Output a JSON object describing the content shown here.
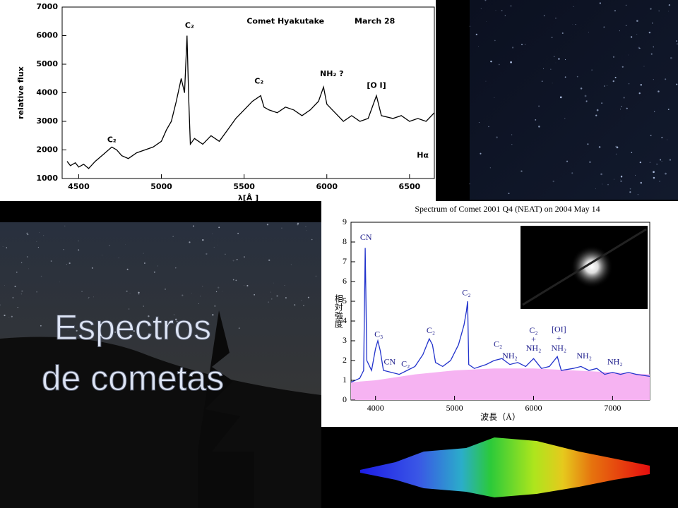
{
  "slide_title": [
    "Espectros",
    "de cometas"
  ],
  "chart_data": [
    {
      "type": "line",
      "xlabel": "λ[Å ]",
      "ylabel": "relative flux",
      "xlim": [
        4400,
        6650
      ],
      "ylim": [
        1000,
        7000
      ],
      "xticks": [
        4500,
        5000,
        5500,
        6000,
        6500
      ],
      "yticks": [
        1000,
        2000,
        3000,
        4000,
        5000,
        6000,
        7000
      ],
      "series": [
        {
          "color": "#000000",
          "x": [
            4430,
            4450,
            4480,
            4500,
            4530,
            4560,
            4600,
            4650,
            4700,
            4730,
            4760,
            4800,
            4850,
            4900,
            4950,
            5000,
            5030,
            5060,
            5090,
            5120,
            5140,
            5155,
            5165,
            5175,
            5200,
            5250,
            5300,
            5350,
            5400,
            5450,
            5500,
            5550,
            5600,
            5620,
            5650,
            5700,
            5750,
            5800,
            5850,
            5900,
            5950,
            5980,
            6000,
            6050,
            6100,
            6150,
            6200,
            6250,
            6300,
            6330,
            6400,
            6450,
            6500,
            6550,
            6600,
            6650
          ],
          "values": [
            1600,
            1450,
            1550,
            1400,
            1500,
            1350,
            1600,
            1850,
            2100,
            2000,
            1800,
            1700,
            1900,
            2000,
            2100,
            2300,
            2700,
            3000,
            3700,
            4500,
            4000,
            6000,
            3800,
            2200,
            2400,
            2200,
            2500,
            2300,
            2700,
            3100,
            3400,
            3700,
            3900,
            3500,
            3400,
            3300,
            3500,
            3400,
            3200,
            3400,
            3700,
            4200,
            3600,
            3300,
            3000,
            3200,
            3000,
            3100,
            3900,
            3200,
            3100,
            3200,
            3000,
            3100,
            3000,
            3300
          ]
        }
      ],
      "annotations": [
        {
          "text": "C₂",
          "x": 4700,
          "y": 2350
        },
        {
          "text": "C₂",
          "x": 5170,
          "y": 6350
        },
        {
          "text": "C₂",
          "x": 5590,
          "y": 4400
        },
        {
          "text": "NH₂ ?",
          "x": 6030,
          "y": 4650
        },
        {
          "text": "[O I]",
          "x": 6300,
          "y": 4250
        },
        {
          "text": "Hα",
          "x": 6580,
          "y": 1800
        },
        {
          "text": "Comet Hyakutake",
          "x": 5750,
          "y": 6500
        },
        {
          "text": "March 28",
          "x": 6290,
          "y": 6500
        }
      ]
    },
    {
      "type": "line",
      "title": "Spectrum of Comet 2001 Q4 (NEAT) on 2004 May 14",
      "xlabel": "波長（Å）",
      "ylabel": "相対強度",
      "xlim": [
        3690,
        7470
      ],
      "ylim": [
        0,
        9
      ],
      "xticks": [
        4000,
        5000,
        6000,
        7000
      ],
      "yticks": [
        0,
        1,
        2,
        3,
        4,
        5,
        6,
        7,
        8,
        9
      ],
      "series": [
        {
          "color": "#f6b3f2",
          "kind": "area",
          "x": [
            3690,
            4000,
            4500,
            5000,
            5500,
            6000,
            6500,
            7000,
            7470
          ],
          "values": [
            0.9,
            1.0,
            1.3,
            1.5,
            1.6,
            1.6,
            1.5,
            1.4,
            1.3
          ]
        },
        {
          "color": "#2233cc",
          "x": [
            3690,
            3800,
            3850,
            3870,
            3890,
            3950,
            4000,
            4030,
            4060,
            4100,
            4200,
            4300,
            4400,
            4500,
            4600,
            4680,
            4720,
            4760,
            4850,
            4950,
            5050,
            5120,
            5150,
            5165,
            5180,
            5250,
            5400,
            5500,
            5600,
            5700,
            5800,
            5900,
            6000,
            6100,
            6200,
            6300,
            6350,
            6500,
            6600,
            6700,
            6800,
            6900,
            7000,
            7100,
            7200,
            7300,
            7470
          ],
          "values": [
            0.9,
            1.1,
            1.5,
            7.7,
            2.0,
            1.5,
            2.6,
            3.0,
            2.5,
            1.5,
            1.4,
            1.3,
            1.5,
            1.7,
            2.3,
            3.1,
            2.8,
            1.9,
            1.7,
            2.0,
            2.8,
            3.8,
            4.5,
            5.0,
            1.8,
            1.6,
            1.8,
            2.0,
            2.1,
            1.8,
            1.9,
            1.7,
            2.1,
            1.6,
            1.7,
            2.2,
            1.5,
            1.6,
            1.7,
            1.5,
            1.6,
            1.3,
            1.4,
            1.3,
            1.4,
            1.3,
            1.2
          ]
        }
      ],
      "annotations": [
        {
          "text": "CN",
          "x": 3880,
          "y": 8.2
        },
        {
          "text": "C₃",
          "x": 4040,
          "y": 3.3
        },
        {
          "text": "CN",
          "x": 4180,
          "y": 1.9
        },
        {
          "text": "C₂",
          "x": 4380,
          "y": 1.8
        },
        {
          "text": "C₂",
          "x": 4700,
          "y": 3.5
        },
        {
          "text": "C₂",
          "x": 5150,
          "y": 5.4
        },
        {
          "text": "C₂",
          "x": 5550,
          "y": 2.8
        },
        {
          "text": "NH₂",
          "x": 5700,
          "y": 2.2
        },
        {
          "text": "C₂",
          "x": 6000,
          "y": 3.5
        },
        {
          "text": "+",
          "x": 6000,
          "y": 3.05
        },
        {
          "text": "NH₂",
          "x": 6000,
          "y": 2.6
        },
        {
          "text": "[OI]",
          "x": 6320,
          "y": 3.55
        },
        {
          "text": "+",
          "x": 6320,
          "y": 3.1
        },
        {
          "text": "NH₂",
          "x": 6320,
          "y": 2.6
        },
        {
          "text": "NH₂",
          "x": 6640,
          "y": 2.2
        },
        {
          "text": "NH₂",
          "x": 7030,
          "y": 1.9
        }
      ]
    }
  ]
}
